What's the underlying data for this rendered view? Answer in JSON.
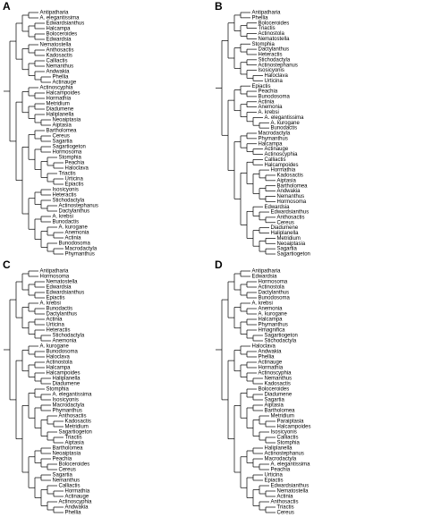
{
  "panels": [
    {
      "letter": "A",
      "taxa": [
        "Antipatharia",
        "A. elegantissima",
        "Edwardsianthus",
        "Halcampa",
        "Boloceroides",
        "Edwardsia",
        "Nematostella",
        "Anthosactis",
        "Kadosactis",
        "Calliactis",
        "Nemanthus",
        "Andwakia",
        "Phellia",
        "Actinauge",
        "Actinoscyphia",
        "Halcampoides",
        "Hormathia",
        "Metridium",
        "Diadumene",
        "Haliplanella",
        "Neoaiptasia",
        "Aiptasia",
        "Bartholomea",
        "Cereus",
        "Sagartia",
        "Sagartiogeton",
        "Hormosoma",
        "Stomphia",
        "Peachia",
        "Haloclava",
        "Triactis",
        "Urticina",
        "Epiactis",
        "Isosicyonis",
        "Heteractis",
        "Stichodactyla",
        "Actinostephanus",
        "Dactylanthus",
        "A. krebsi",
        "Bunodactis",
        "A. kurogane",
        "Anemonia",
        "Actinia",
        "Bunodosoma",
        "Macrodactyla",
        "Phymanthus"
      ]
    },
    {
      "letter": "B",
      "taxa": [
        "Antipatharia",
        "Phellia",
        "Boloceroides",
        "Triactis",
        "Actinostola",
        "Nematostella",
        "Stomphia",
        "Dactylanthus",
        "Heteractis",
        "Stichodactyla",
        "Actinostephanus",
        "Isosicyonis",
        "Haloclava",
        "Urticina",
        "Epiactis",
        "Peachia",
        "Bunodosoma",
        "Actinia",
        "Anemonia",
        "A. krebsi",
        "A. elegantissima",
        "A. kurogane",
        "Bunodactis",
        "Macrodactyla",
        "Phymanthus",
        "Halcampa",
        "Actinauge",
        "Actinoscyphia",
        "Calliactis",
        "Halcampoides",
        "Hormathia",
        "Kadosactis",
        "Aiptasia",
        "Bartholomea",
        "Andwakia",
        "Nemanthus",
        "Hormosoma",
        "Edwardsia",
        "Edwardsianthus",
        "Anthosactis",
        "Cereus",
        "Diadumene",
        "Haliplanella",
        "Metridium",
        "Neoaiptasia",
        "Sagartia",
        "Sagartiogeton"
      ]
    },
    {
      "letter": "C",
      "taxa": [
        "Antipatharia",
        "Hormosoma",
        "Nematostella",
        "Edwardsia",
        "Edwardsianthus",
        "Epiactis",
        "A. krebsi",
        "Bunodactis",
        "Dactylanthus",
        "Actinia",
        "Urticina",
        "Heteractis",
        "Stichodactyla",
        "Anemonia",
        "A. kurogane",
        "Bunodosoma",
        "Haloclava",
        "Actinostola",
        "Halcampa",
        "Halcampoides",
        "Haliplanella",
        "Diadumene",
        "Stomphia",
        "A. elegantissima",
        "Isosicyonis",
        "Macrodactyla",
        "Phymanthus",
        "Anthosactis",
        "Kadosactis",
        "Metridium",
        "Sagartiogeton",
        "Triactis",
        "Aiptasia",
        "Bartholomea",
        "Neoaiptasia",
        "Peachia",
        "Boloceroides",
        "Cereus",
        "Sagartia",
        "Nemanthus",
        "Calliactis",
        "Hormathia",
        "Actinauge",
        "Actinoscyphia",
        "Andwakia",
        "Phellia"
      ]
    },
    {
      "letter": "D",
      "taxa": [
        "Antipatharia",
        "Edwardsia",
        "Hormosoma",
        "Actinostola",
        "Dactylanthus",
        "Bunodosoma",
        "A. krebsi",
        "Anemonia",
        "A. kurogane",
        "Halcampa",
        "Phymanthus",
        "Hmagnifica",
        "Sagartiogeton",
        "Stichodactyla",
        "Haloclava",
        "Andwakia",
        "Phellia",
        "Actinauge",
        "Hormathia",
        "Actinoscyphia",
        "Nemanthus",
        "Kadosactis",
        "Boloceroides",
        "Diadumene",
        "Sagartia",
        "Aiptasia",
        "Bartholomea",
        "Metridium",
        "Paraiptasia",
        "Halcampoides",
        "Isosicyonis",
        "Calliactis",
        "Stomphia",
        "Haliplanella",
        "Actinostephanus",
        "Macrodactyla",
        "A. elegantissima",
        "Peachia",
        "Urticina",
        "Epiactis",
        "Edwardsianthus",
        "Nematostella",
        "Actinia",
        "Anthosactis",
        "Triactis",
        "Cereus"
      ]
    }
  ]
}
